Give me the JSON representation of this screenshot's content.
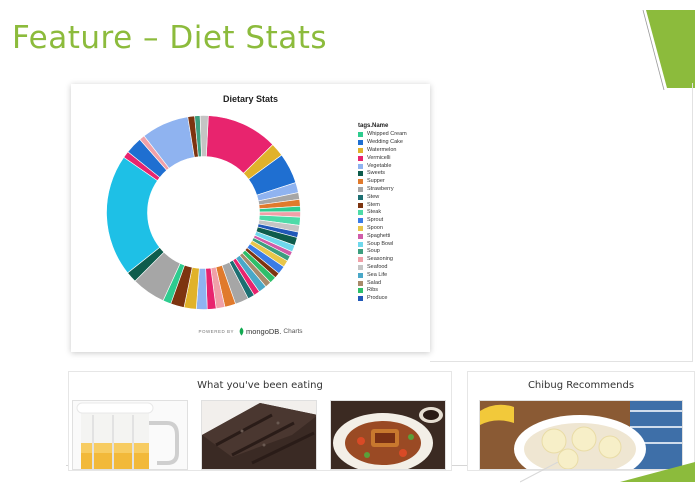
{
  "slide": {
    "title": "Feature – Diet Stats",
    "accent_color": "#8cbb3c"
  },
  "chart_card": {
    "powered_by": "POWERED BY",
    "brand": "mongoDB.",
    "product": "Charts"
  },
  "chart_data": {
    "type": "pie",
    "style": "donut",
    "title": "Dietary Stats",
    "legend_title": "tags.Name",
    "legend_position": "right",
    "legend": [
      {
        "name": "Whipped Cream",
        "color": "#2ecc8f"
      },
      {
        "name": "Wedding Cake",
        "color": "#1f6fd1"
      },
      {
        "name": "Watermelon",
        "color": "#e0b22a"
      },
      {
        "name": "Vermicelli",
        "color": "#e8246e"
      },
      {
        "name": "Vegetable",
        "color": "#8fb3f0"
      },
      {
        "name": "Sweets",
        "color": "#0e5c4c"
      },
      {
        "name": "Supper",
        "color": "#e07a2c"
      },
      {
        "name": "Strawberry",
        "color": "#a6a6a6"
      },
      {
        "name": "Stew",
        "color": "#1d6f72"
      },
      {
        "name": "Stem",
        "color": "#7d3410"
      },
      {
        "name": "Steak",
        "color": "#4ddba8"
      },
      {
        "name": "Sprout",
        "color": "#3a7ce6"
      },
      {
        "name": "Spoon",
        "color": "#e8c64a"
      },
      {
        "name": "Spaghetti",
        "color": "#d05ca8"
      },
      {
        "name": "Soup Bowl",
        "color": "#6fd8ec"
      },
      {
        "name": "Soup",
        "color": "#3c9e7e"
      },
      {
        "name": "Seasoning",
        "color": "#f0a0a8"
      },
      {
        "name": "Seafood",
        "color": "#c4c4c4"
      },
      {
        "name": "Sea Life",
        "color": "#4aa8c8"
      },
      {
        "name": "Salad",
        "color": "#a88a6a"
      },
      {
        "name": "Ribs",
        "color": "#2dbf6a"
      },
      {
        "name": "Produce",
        "color": "#2158b8"
      }
    ],
    "slices": [
      {
        "value": 10.5,
        "color": "#e8246e"
      },
      {
        "value": 2.0,
        "color": "#e0b22a"
      },
      {
        "value": 4.5,
        "color": "#1f6fd1"
      },
      {
        "value": 1.5,
        "color": "#8fb3f0"
      },
      {
        "value": 1.0,
        "color": "#a6a6a6"
      },
      {
        "value": 1.0,
        "color": "#e07a2c"
      },
      {
        "value": 0.8,
        "color": "#2ecc8f"
      },
      {
        "value": 0.8,
        "color": "#f0a0a8"
      },
      {
        "value": 1.2,
        "color": "#4ddba8"
      },
      {
        "value": 1.0,
        "color": "#c4c4c4"
      },
      {
        "value": 0.8,
        "color": "#2158b8"
      },
      {
        "value": 1.2,
        "color": "#0e5c4c"
      },
      {
        "value": 1.0,
        "color": "#6fd8ec"
      },
      {
        "value": 0.7,
        "color": "#d05ca8"
      },
      {
        "value": 0.8,
        "color": "#3c9e7e"
      },
      {
        "value": 1.0,
        "color": "#e8c64a"
      },
      {
        "value": 1.2,
        "color": "#3a7ce6"
      },
      {
        "value": 0.8,
        "color": "#7d3410"
      },
      {
        "value": 1.0,
        "color": "#2dbf6a"
      },
      {
        "value": 0.9,
        "color": "#a88a6a"
      },
      {
        "value": 1.2,
        "color": "#4aa8c8"
      },
      {
        "value": 0.9,
        "color": "#e8246e"
      },
      {
        "value": 1.0,
        "color": "#1d6f72"
      },
      {
        "value": 2.0,
        "color": "#a6a6a6"
      },
      {
        "value": 1.6,
        "color": "#e07a2c"
      },
      {
        "value": 1.3,
        "color": "#f0a0a8"
      },
      {
        "value": 1.3,
        "color": "#e8246e"
      },
      {
        "value": 1.6,
        "color": "#8fb3f0"
      },
      {
        "value": 1.8,
        "color": "#e0b22a"
      },
      {
        "value": 2.0,
        "color": "#7d3410"
      },
      {
        "value": 1.2,
        "color": "#2ecc8f"
      },
      {
        "value": 5.0,
        "color": "#a6a6a6"
      },
      {
        "value": 1.6,
        "color": "#0e5c4c"
      },
      {
        "value": 18.0,
        "color": "#1ec0e6"
      },
      {
        "value": 1.0,
        "color": "#e8246e"
      },
      {
        "value": 2.5,
        "color": "#1f6fd1"
      },
      {
        "value": 0.8,
        "color": "#f0a0a8"
      },
      {
        "value": 7.0,
        "color": "#8fb3f0"
      },
      {
        "value": 1.0,
        "color": "#7d3410"
      },
      {
        "value": 0.8,
        "color": "#3c9e7e"
      },
      {
        "value": 1.2,
        "color": "#c4c4c4"
      }
    ]
  },
  "panels": {
    "eating": {
      "title": "What you've been eating",
      "items": [
        {
          "icon": "beer-mug-photo"
        },
        {
          "icon": "chocolate-cake-photo"
        },
        {
          "icon": "braised-pork-dish-photo"
        }
      ]
    },
    "recommend": {
      "title": "Chibug Recommends",
      "items": [
        {
          "icon": "banana-oatmeal-bowl-photo"
        }
      ]
    }
  }
}
